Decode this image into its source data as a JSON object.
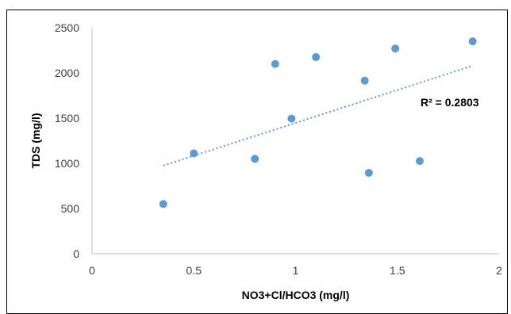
{
  "chart_data": {
    "type": "scatter",
    "title": "",
    "xlabel": "NO3+Cl/HCO3 (mg/l)",
    "ylabel": "TDS (mg/l)",
    "xlim": [
      0,
      2
    ],
    "ylim": [
      0,
      2500
    ],
    "x_ticks": [
      "0",
      "0.5",
      "1",
      "1.5",
      "2"
    ],
    "y_ticks": [
      "0",
      "500",
      "1000",
      "1500",
      "2000",
      "2500"
    ],
    "grid": false,
    "legend": "none",
    "marker_color": "#5b9bd5",
    "trendline_color": "#5b9bd5",
    "points": [
      {
        "x": 0.35,
        "y": 550
      },
      {
        "x": 0.5,
        "y": 1110
      },
      {
        "x": 0.8,
        "y": 1050
      },
      {
        "x": 0.9,
        "y": 2100
      },
      {
        "x": 0.98,
        "y": 1495
      },
      {
        "x": 1.1,
        "y": 2175
      },
      {
        "x": 1.34,
        "y": 1915
      },
      {
        "x": 1.36,
        "y": 895
      },
      {
        "x": 1.49,
        "y": 2270
      },
      {
        "x": 1.61,
        "y": 1025
      },
      {
        "x": 1.87,
        "y": 2350
      }
    ],
    "trendline": {
      "type": "linear",
      "x_start": 0.35,
      "y_start": 975,
      "x_end": 1.87,
      "y_end": 2080
    },
    "annotation": "R² = 0.2803"
  }
}
